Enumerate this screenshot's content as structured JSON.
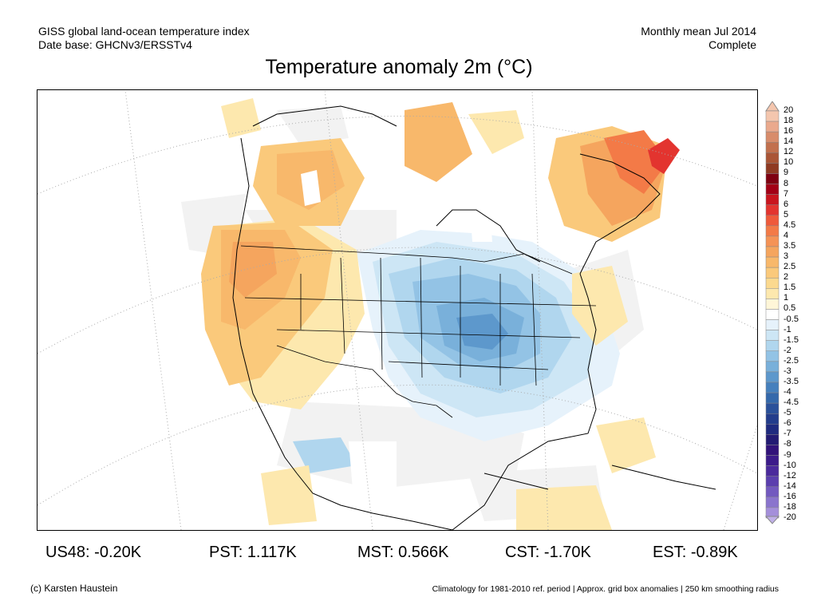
{
  "header": {
    "line1_left": "GISS global land-ocean temperature index",
    "line2_left": "Date base: GHCNv3/ERSSTv4",
    "line1_right": "Monthly mean Jul 2014",
    "line2_right": "Complete"
  },
  "title": "Temperature anomaly 2m (°C)",
  "colorbar": {
    "labels": [
      "20",
      "18",
      "16",
      "14",
      "12",
      "10",
      "9",
      "8",
      "7",
      "6",
      "5",
      "4.5",
      "4",
      "3.5",
      "3",
      "2.5",
      "2",
      "1.5",
      "1",
      "0.5",
      "-0.5",
      "-1",
      "-1.5",
      "-2",
      "-2.5",
      "-3",
      "-3.5",
      "-4",
      "-4.5",
      "-5",
      "-6",
      "-7",
      "-8",
      "-9",
      "-10",
      "-12",
      "-14",
      "-16",
      "-18",
      "-20"
    ],
    "colors": [
      "#f4c6ae",
      "#eaa98d",
      "#d88c6b",
      "#c2704e",
      "#aa5536",
      "#8f3a22",
      "#7f0011",
      "#a30016",
      "#c9151e",
      "#e3342f",
      "#ef5a3b",
      "#f37a47",
      "#f59356",
      "#f5a55e",
      "#f8b86b",
      "#fac97b",
      "#fbd98f",
      "#fde8ae",
      "#fff6d8",
      "#ffffff",
      "#e6f2fb",
      "#cde6f5",
      "#b0d6ee",
      "#93c3e5",
      "#79b0da",
      "#5d98cc",
      "#4580bd",
      "#3469ab",
      "#2a519a",
      "#233d8c",
      "#1f2b7f",
      "#231b73",
      "#32137a",
      "#3c1b8a",
      "#4b2a9c",
      "#5b3fae",
      "#7259bf",
      "#8a74cd",
      "#a48fda",
      "#c0b0e8"
    ]
  },
  "stats": [
    {
      "region": "US48",
      "value": "-0.20K"
    },
    {
      "region": "PST",
      "value": "1.117K"
    },
    {
      "region": "MST",
      "value": "0.566K"
    },
    {
      "region": "CST",
      "value": "-1.70K"
    },
    {
      "region": "EST",
      "value": "-0.89K"
    }
  ],
  "footer": {
    "left": "(c) Karsten Haustein",
    "right": "Climatology for 1981-2010 ref. period | Approx. grid box anomalies | 250 km smoothing radius"
  }
}
